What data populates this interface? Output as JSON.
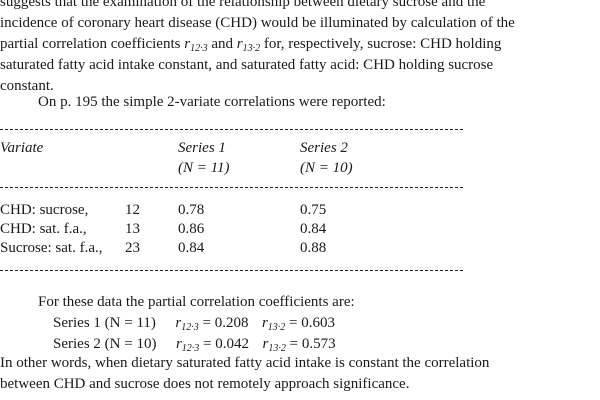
{
  "intro_lines": [
    "suggests that the examination of the relationship between dietary sucrose and the",
    "incidence of coronary heart disease (CHD) would be illuminated by calculation of the",
    "partial correlation coefficients",
    "constant."
  ],
  "intro_line3_a": "partial correlation coefficients ",
  "intro_line3_r1": "r",
  "intro_line3_r1_sub": "12·3",
  "intro_line3_and": " and ",
  "intro_line3_r2": "r",
  "intro_line3_r2_sub": "13·2",
  "intro_line3_b": " for, respectively, sucrose: CHD holding",
  "intro_line4": "saturated fatty acid intake constant, and saturated fatty acid: CHD holding sucrose",
  "intro_line5": "constant.",
  "reported_line": "On p. 195 the simple 2-variate correlations were reported:",
  "table": {
    "col_variate": "Variate",
    "col_series1": "Series 1",
    "col_series1_n": "(N = 11)",
    "col_series2": "Series 2",
    "col_series2_n": "(N = 10)",
    "rows": [
      {
        "variate": "CHD: sucrose,",
        "id": "12",
        "s1": "0.78",
        "s2": "0.75"
      },
      {
        "variate": "CHD: sat. f.a.,",
        "id": "13",
        "s1": "0.86",
        "s2": "0.84"
      },
      {
        "variate": "Sucrose: sat. f.a.,",
        "id": "23",
        "s1": "0.84",
        "s2": "0.88"
      }
    ]
  },
  "partial_intro": "For these data the partial correlation coefficients are:",
  "partials": [
    {
      "series": "Series 1 (N = 11)",
      "r1_sub": "12·3",
      "r1_val": "= 0.208",
      "r2_sub": "13·2",
      "r2_val": "= 0.603"
    },
    {
      "series": "Series 2 (N = 10)",
      "r1_sub": "12·3",
      "r1_val": "= 0.042",
      "r2_sub": "13·2",
      "r2_val": "= 0.573"
    }
  ],
  "conclusion_lines": [
    "In other words, when dietary saturated fatty acid intake is constant the correlation",
    "between CHD and sucrose does not remotely approach significance."
  ]
}
